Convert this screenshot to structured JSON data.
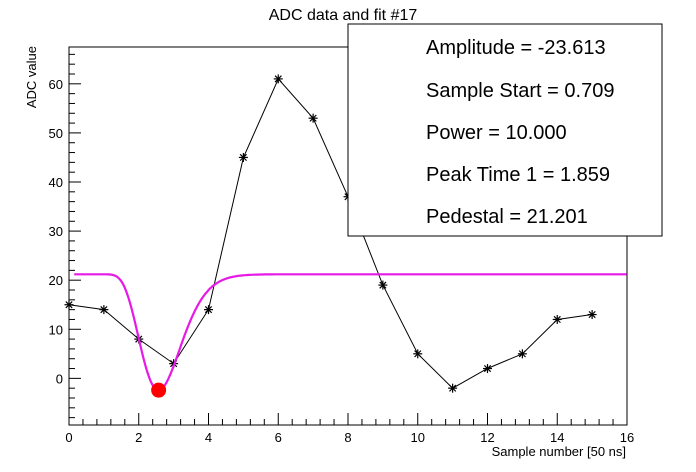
{
  "chart_data": {
    "type": "line",
    "title": "ADC data and fit #17",
    "xlabel": "Sample number [50 ns]",
    "ylabel": "ADC value",
    "xlim": [
      0,
      16
    ],
    "ylim": [
      -9.5,
      67.5
    ],
    "x_ticks": [
      0,
      2,
      4,
      6,
      8,
      10,
      12,
      14,
      16
    ],
    "y_ticks": [
      0,
      10,
      20,
      30,
      40,
      50,
      60
    ],
    "series": [
      {
        "marker": "asterisk",
        "color": "#000000",
        "x": [
          0,
          1,
          2,
          3,
          4,
          5,
          6,
          7,
          8,
          9,
          10,
          11,
          12,
          13,
          14,
          15
        ],
        "y": [
          15,
          14,
          8,
          3,
          14,
          45,
          61,
          53,
          37,
          19,
          5,
          -2,
          2,
          5,
          12,
          13
        ]
      }
    ],
    "fit": {
      "color": "#e619e6",
      "amplitude": -23.613,
      "sample_start": 0.709,
      "power": 10.0,
      "peak_time": 1.859,
      "pedestal": 21.201,
      "x_range": [
        0.15,
        16
      ]
    },
    "peak_marker": {
      "x": 2.57,
      "y": -2.4,
      "color": "#ff0000"
    },
    "stats": [
      "Amplitude = -23.613",
      "Sample Start = 0.709",
      "Power = 10.000",
      "Peak Time 1 = 1.859",
      "Pedestal = 21.201"
    ],
    "legend_placement": "top-right",
    "grid": false
  }
}
